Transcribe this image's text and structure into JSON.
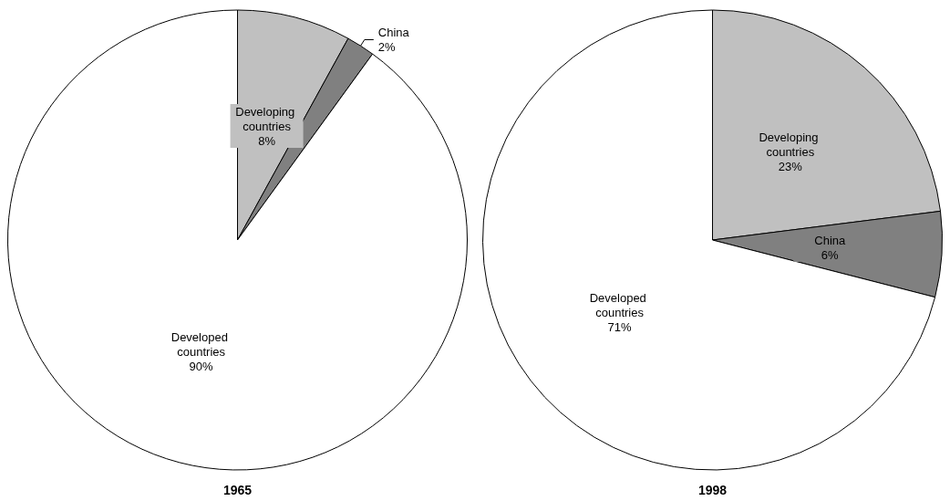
{
  "chart_data": [
    {
      "type": "pie",
      "title": "1965",
      "categories": [
        "Developing countries",
        "China",
        "Developed countries"
      ],
      "values": [
        8,
        2,
        90
      ],
      "value_labels": [
        "8%",
        "2%",
        "90%"
      ],
      "colors": [
        "#c0c0c0",
        "#808080",
        "#ffffff"
      ],
      "legend": false
    },
    {
      "type": "pie",
      "title": "1998",
      "categories": [
        "Developing countries",
        "China",
        "Developed countries"
      ],
      "values": [
        23,
        6,
        71
      ],
      "value_labels": [
        "23%",
        "6%",
        "71%"
      ],
      "colors": [
        "#c0c0c0",
        "#808080",
        "#ffffff"
      ],
      "legend": false
    }
  ]
}
